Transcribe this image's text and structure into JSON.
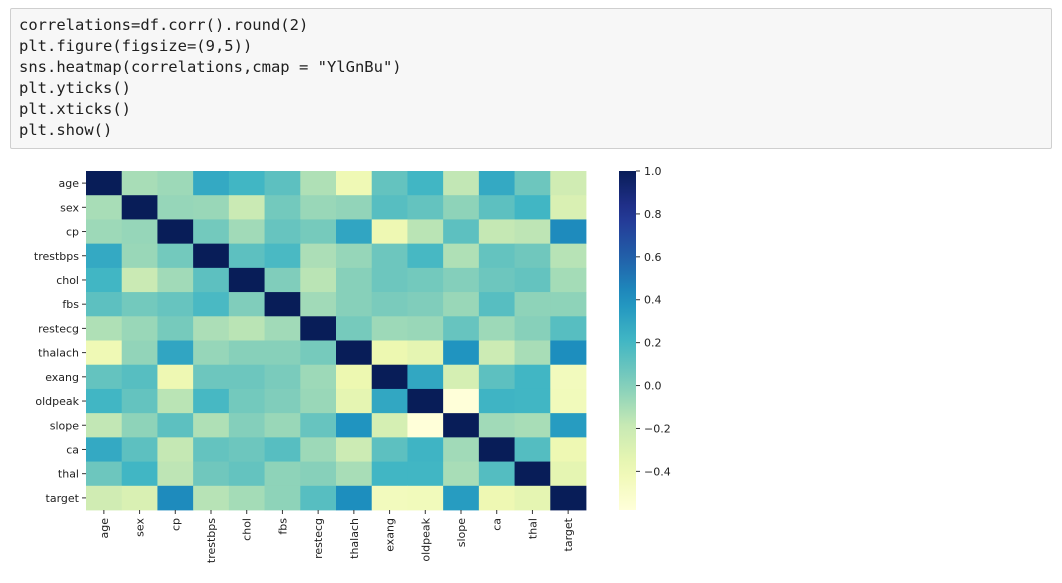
{
  "code_cell": {
    "lines": [
      "correlations=df.corr().round(2)",
      "plt.figure(figsize=(9,5))",
      "sns.heatmap(correlations,cmap = \"YlGnBu\")",
      "plt.yticks()",
      "plt.xticks()",
      "plt.show()"
    ]
  },
  "chart_data": {
    "type": "heatmap",
    "title": "",
    "xlabel": "",
    "ylabel": "",
    "colormap": "YlGnBu",
    "vmin": -0.58,
    "vmax": 1.0,
    "labels": [
      "age",
      "sex",
      "cp",
      "trestbps",
      "chol",
      "fbs",
      "restecg",
      "thalach",
      "exang",
      "oldpeak",
      "slope",
      "ca",
      "thal",
      "target"
    ],
    "colorbar_ticks": [
      "1.0",
      "0.8",
      "0.6",
      "0.4",
      "0.2",
      "0.0",
      "−0.2",
      "−0.4"
    ],
    "colorbar_tick_values": [
      1.0,
      0.8,
      0.6,
      0.4,
      0.2,
      0.0,
      -0.2,
      -0.4
    ],
    "values": [
      [
        1.0,
        -0.1,
        -0.07,
        0.28,
        0.21,
        0.12,
        -0.12,
        -0.4,
        0.1,
        0.21,
        -0.17,
        0.28,
        0.07,
        -0.23
      ],
      [
        -0.1,
        1.0,
        -0.05,
        -0.06,
        -0.2,
        0.05,
        -0.06,
        -0.04,
        0.14,
        0.1,
        -0.03,
        0.12,
        0.21,
        -0.28
      ],
      [
        -0.07,
        -0.05,
        1.0,
        0.05,
        -0.08,
        0.09,
        0.04,
        0.3,
        -0.39,
        -0.15,
        0.12,
        -0.18,
        -0.16,
        0.43
      ],
      [
        0.28,
        -0.06,
        0.05,
        1.0,
        0.12,
        0.18,
        -0.11,
        -0.05,
        0.07,
        0.19,
        -0.12,
        0.1,
        0.06,
        -0.14
      ],
      [
        0.21,
        -0.2,
        -0.08,
        0.12,
        1.0,
        0.01,
        -0.15,
        -0.01,
        0.07,
        0.05,
        0.0,
        0.07,
        0.1,
        -0.09
      ],
      [
        0.12,
        0.05,
        0.09,
        0.18,
        0.01,
        1.0,
        -0.08,
        -0.01,
        0.03,
        0.01,
        -0.06,
        0.14,
        -0.03,
        -0.03
      ],
      [
        -0.12,
        -0.06,
        0.04,
        -0.11,
        -0.15,
        -0.08,
        1.0,
        0.04,
        -0.07,
        -0.06,
        0.09,
        -0.07,
        -0.01,
        0.14
      ],
      [
        -0.4,
        -0.04,
        0.3,
        -0.05,
        -0.01,
        -0.01,
        0.04,
        1.0,
        -0.38,
        -0.34,
        0.39,
        -0.21,
        -0.1,
        0.42
      ],
      [
        0.1,
        0.14,
        -0.39,
        0.07,
        0.07,
        0.03,
        -0.07,
        -0.38,
        1.0,
        0.29,
        -0.26,
        0.12,
        0.21,
        -0.44
      ],
      [
        0.21,
        0.1,
        -0.15,
        0.19,
        0.05,
        0.01,
        -0.06,
        -0.34,
        0.29,
        1.0,
        -0.58,
        0.22,
        0.21,
        -0.43
      ],
      [
        -0.17,
        -0.03,
        0.12,
        -0.12,
        0.0,
        -0.06,
        0.09,
        0.39,
        -0.26,
        -0.58,
        1.0,
        -0.08,
        -0.1,
        0.35
      ],
      [
        0.28,
        0.12,
        -0.18,
        0.1,
        0.07,
        0.14,
        -0.07,
        -0.21,
        0.12,
        0.22,
        -0.08,
        1.0,
        0.15,
        -0.39
      ],
      [
        0.07,
        0.21,
        -0.16,
        0.06,
        0.1,
        -0.03,
        -0.01,
        -0.1,
        0.21,
        0.21,
        -0.1,
        0.15,
        1.0,
        -0.34
      ],
      [
        -0.23,
        -0.28,
        0.43,
        -0.14,
        -0.09,
        -0.03,
        0.14,
        0.42,
        -0.44,
        -0.43,
        0.35,
        -0.39,
        -0.34,
        1.0
      ]
    ]
  }
}
